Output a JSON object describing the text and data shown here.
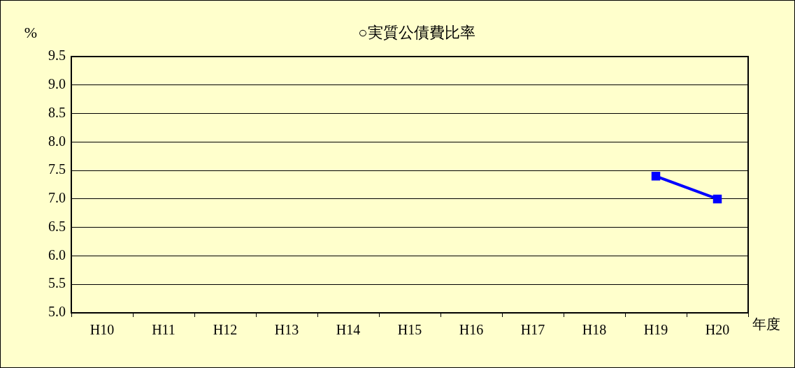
{
  "chart_data": {
    "type": "line",
    "title": "○実質公債費比率",
    "ylabel": "%",
    "xlabel": "年度",
    "categories": [
      "H10",
      "H11",
      "H12",
      "H13",
      "H14",
      "H15",
      "H16",
      "H17",
      "H18",
      "H19",
      "H20"
    ],
    "series": [
      {
        "color": "#0000ff",
        "values": [
          null,
          null,
          null,
          null,
          null,
          null,
          null,
          null,
          null,
          7.4,
          7.0
        ]
      }
    ],
    "ylim": [
      5,
      9.5
    ],
    "yticks": [
      {
        "value": 5,
        "label": "5.0"
      },
      {
        "value": 5.5,
        "label": "5.5"
      },
      {
        "value": 6,
        "label": "6.0"
      },
      {
        "value": 6.5,
        "label": "6.5"
      },
      {
        "value": 7,
        "label": "7.0"
      },
      {
        "value": 7.5,
        "label": "7.5"
      },
      {
        "value": 8,
        "label": "8.0"
      },
      {
        "value": 8.5,
        "label": "8.5"
      },
      {
        "value": 9,
        "label": "9.0"
      },
      {
        "value": 9.5,
        "label": "9.5"
      }
    ],
    "grid": "y",
    "legend": false,
    "marker": "square",
    "line_style": "solid"
  }
}
